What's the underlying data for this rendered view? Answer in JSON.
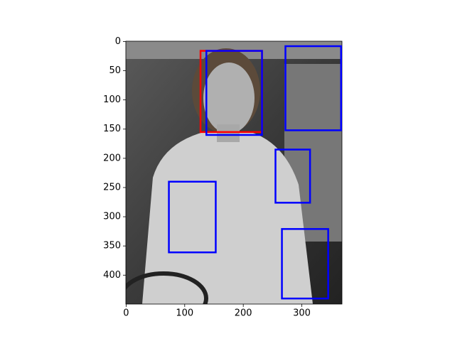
{
  "chart_data": {
    "type": "image-boxes",
    "xlim": [
      -0.5,
      368.5
    ],
    "ylim": [
      449.5,
      -0.5
    ],
    "xticks": [
      0,
      100,
      200,
      300
    ],
    "yticks": [
      0,
      50,
      100,
      150,
      200,
      250,
      300,
      350,
      400
    ],
    "series": [
      {
        "color": "#ff0000",
        "values": [
          [
            127,
            16,
            232,
            155
          ]
        ]
      },
      {
        "color": "#0000ff",
        "values": [
          [
            137,
            16,
            232,
            160
          ],
          [
            272,
            8,
            367,
            152
          ],
          [
            255,
            185,
            314,
            276
          ],
          [
            73,
            240,
            153,
            361
          ],
          [
            266,
            321,
            345,
            440
          ]
        ]
      }
    ]
  }
}
